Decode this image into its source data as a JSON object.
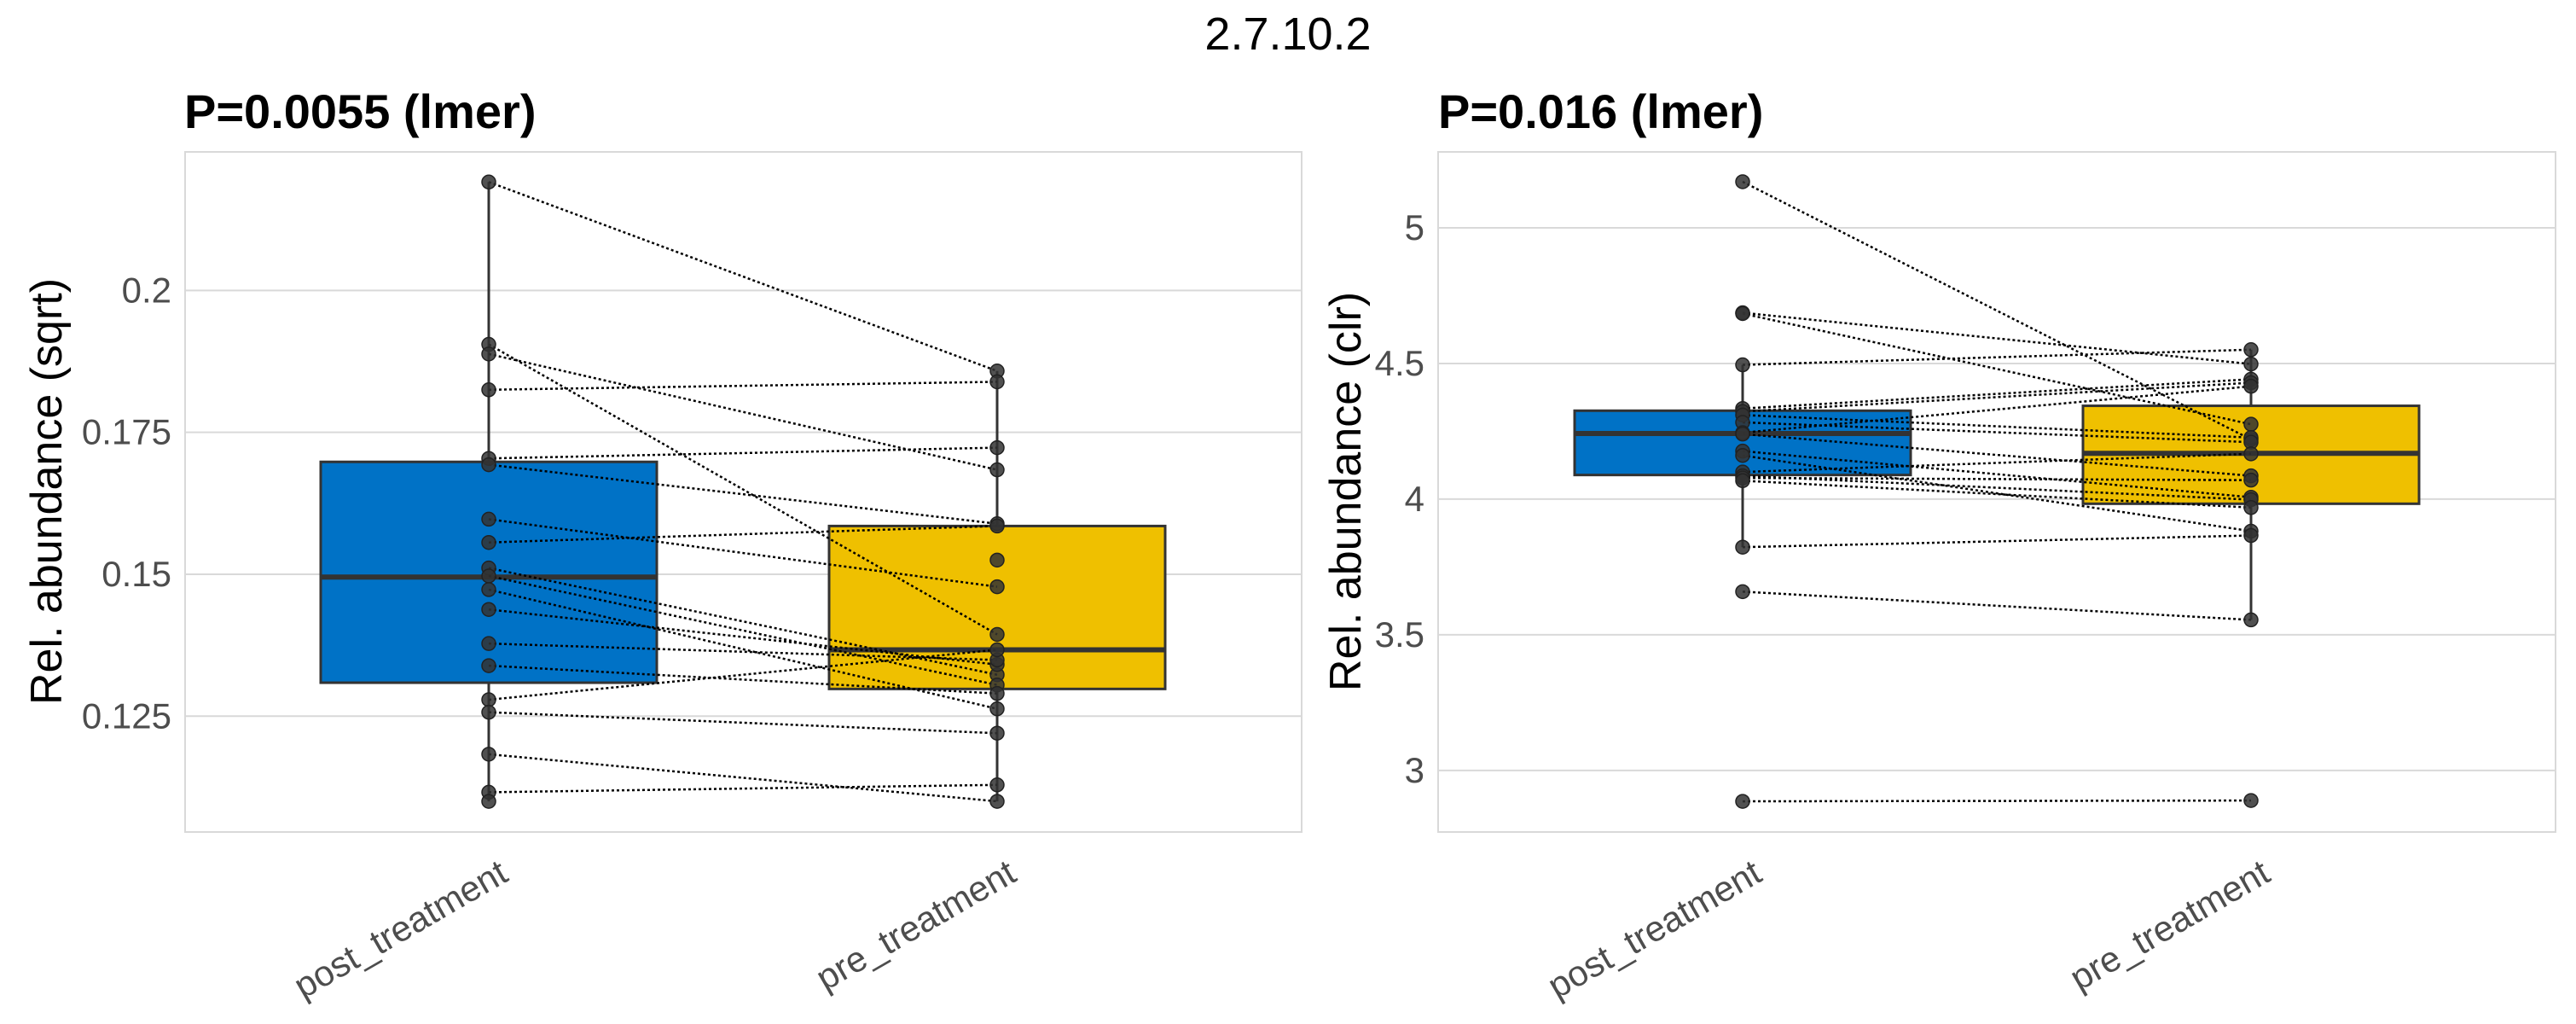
{
  "suptitle": "2.7.10.2",
  "colors": {
    "post_treatment": "#0072C6",
    "pre_treatment": "#EFC000",
    "points": "#333333",
    "grid": "#d9d9d9"
  },
  "chart_data": [
    {
      "type": "box",
      "title": "P=0.0055 (lmer)",
      "xlabel": "",
      "ylabel": "Rel. abundance (sqrt)",
      "categories": [
        "post_treatment",
        "pre_treatment"
      ],
      "ylim": [
        0.1046,
        0.2244
      ],
      "yticks": [
        0.125,
        0.15,
        0.175,
        0.2
      ],
      "ytick_labels": [
        "0.125",
        "0.15",
        "0.175",
        "0.2"
      ],
      "grid": true,
      "boxes": [
        {
          "q1": 0.1309,
          "median": 0.1495,
          "q3": 0.1698,
          "whisker_low": 0.11,
          "whisker_high": 0.2191
        },
        {
          "q1": 0.1298,
          "median": 0.1367,
          "q3": 0.1585,
          "whisker_low": 0.11,
          "whisker_high": 0.1858
        }
      ],
      "paired_points": [
        [
          0.2191,
          0.1858
        ],
        [
          0.1905,
          0.1394
        ],
        [
          0.1888,
          0.1684
        ],
        [
          0.1825,
          0.1839
        ],
        [
          0.1704,
          0.1723
        ],
        [
          0.1693,
          0.1589
        ],
        [
          0.1597,
          0.1478
        ],
        [
          0.1556,
          0.1585
        ],
        [
          0.1511,
          0.1323
        ],
        [
          0.1497,
          0.1305
        ],
        [
          0.1473,
          0.1263
        ],
        [
          0.1438,
          0.1341
        ],
        [
          0.1378,
          0.1349
        ],
        [
          0.1339,
          0.129
        ],
        [
          0.1279,
          0.1367
        ],
        [
          0.1257,
          0.122
        ],
        [
          0.1183,
          0.11
        ],
        [
          0.1116,
          0.1129
        ],
        [
          0.11,
          null
        ],
        [
          null,
          0.1525
        ]
      ]
    },
    {
      "type": "box",
      "title": "P=0.016 (lmer)",
      "xlabel": "",
      "ylabel": "Rel. abundance (clr)",
      "categories": [
        "post_treatment",
        "pre_treatment"
      ],
      "ylim": [
        2.773,
        5.28
      ],
      "yticks": [
        3,
        3.5,
        4,
        4.5,
        5
      ],
      "ytick_labels": [
        "3",
        "3.5",
        "4",
        "4.5",
        "5"
      ],
      "grid": true,
      "boxes": [
        {
          "q1": 4.089,
          "median": 4.242,
          "q3": 4.326,
          "whisker_low": 3.823,
          "whisker_high": 4.495
        },
        {
          "q1": 3.983,
          "median": 4.169,
          "q3": 4.344,
          "whisker_low": 3.555,
          "whisker_high": 4.551
        }
      ],
      "paired_points": [
        [
          5.17,
          4.22
        ],
        [
          4.687,
          4.498
        ],
        [
          4.684,
          4.276
        ],
        [
          4.495,
          4.551
        ],
        [
          4.334,
          4.442
        ],
        [
          4.323,
          4.429
        ],
        [
          4.31,
          4.227
        ],
        [
          4.283,
          4.21
        ],
        [
          4.245,
          4.416
        ],
        [
          4.24,
          4.086
        ],
        [
          4.177,
          4.007
        ],
        [
          4.161,
          3.882
        ],
        [
          4.1,
          4.167
        ],
        [
          4.086,
          3.998
        ],
        [
          4.078,
          4.07
        ],
        [
          4.068,
          3.969
        ],
        [
          3.823,
          3.866
        ],
        [
          3.659,
          3.555
        ],
        [
          2.886,
          2.889
        ]
      ]
    }
  ]
}
